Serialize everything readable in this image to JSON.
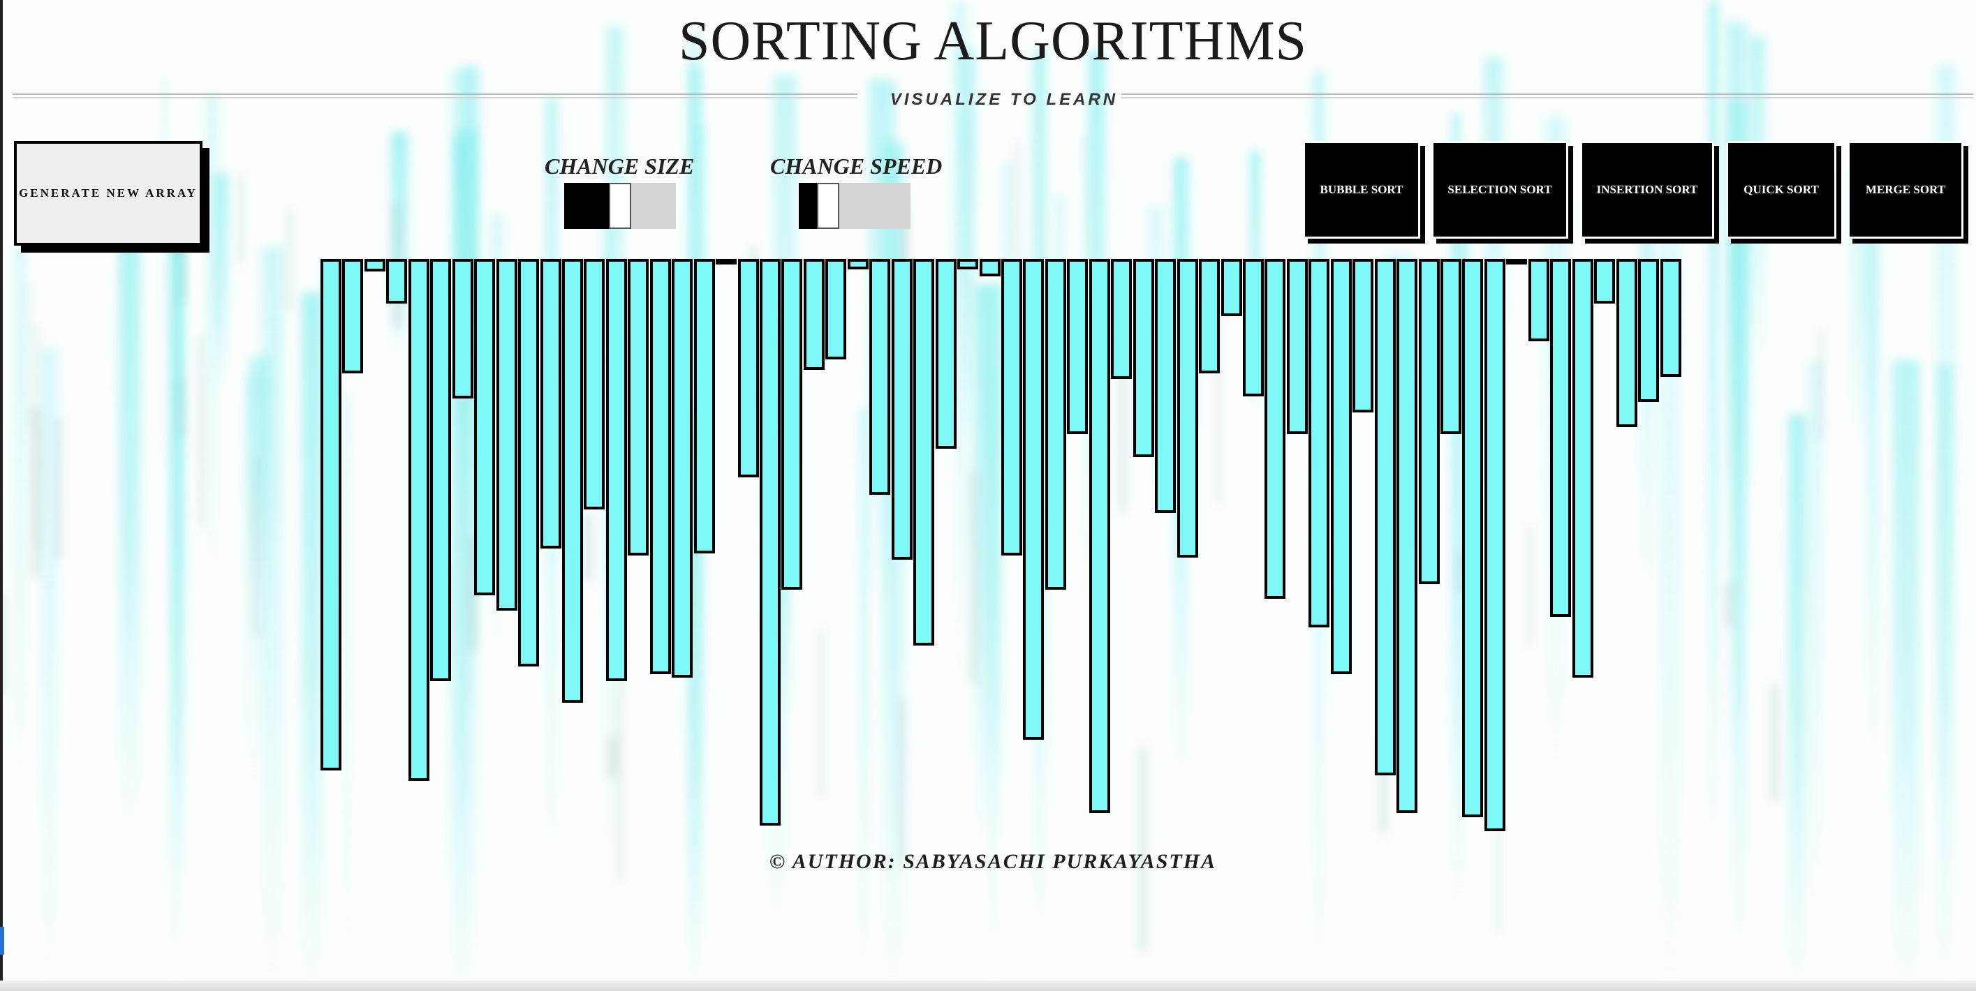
{
  "header": {
    "title": "SORTING ALGORITHMS",
    "subtitle": "VISUALIZE TO LEARN"
  },
  "controls": {
    "generate_label": "GENERATE NEW ARRAY",
    "size_label": "CHANGE SIZE",
    "size_value_percent": 50,
    "speed_label": "CHANGE SPEED",
    "speed_value_percent": 20
  },
  "algorithms": [
    {
      "label": "BUBBLE SORT"
    },
    {
      "label": "SELECTION SORT"
    },
    {
      "label": "INSERTION SORT"
    },
    {
      "label": "QUICK SORT"
    },
    {
      "label": "MERGE SORT"
    }
  ],
  "footer": {
    "author": "© AUTHOR: SABYASACHI PURKAYASTHA"
  },
  "colors": {
    "bar_fill": "#7ff8f8",
    "bar_border": "#000000",
    "background_streaks": "#8ff0f0",
    "button_bg": "#000000",
    "button_text": "#ffffff"
  },
  "chart_data": {
    "type": "bar",
    "title": "",
    "xlabel": "",
    "ylabel": "",
    "ylim": [
      0,
      800
    ],
    "values": [
      715,
      160,
      18,
      62,
      730,
      590,
      195,
      470,
      492,
      570,
      405,
      620,
      350,
      590,
      415,
      580,
      585,
      412,
      5,
      305,
      792,
      462,
      155,
      140,
      15,
      330,
      420,
      540,
      265,
      15,
      24,
      415,
      672,
      462,
      245,
      775,
      168,
      277,
      355,
      418,
      160,
      80,
      192,
      475,
      245,
      515,
      580,
      215,
      722,
      775,
      455,
      245,
      780,
      800,
      5,
      115,
      500,
      585,
      62,
      235,
      200,
      165
    ]
  }
}
